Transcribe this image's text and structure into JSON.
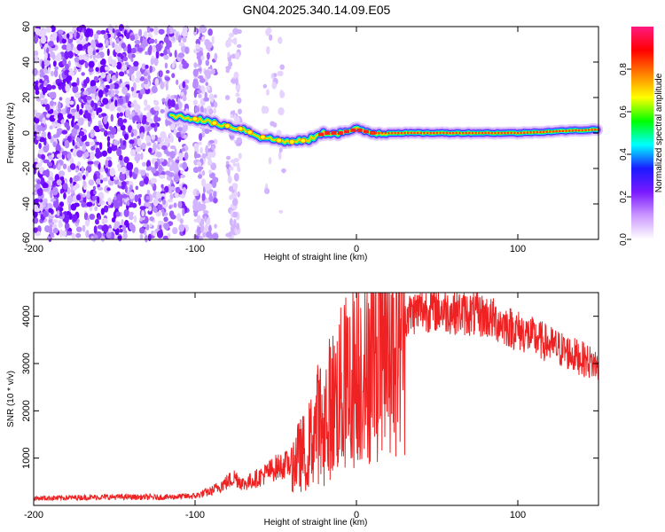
{
  "title": "GN04.2025.340.14.09.E05",
  "chart_data": [
    {
      "type": "heatmap",
      "xlabel": "Height of straight line (km)",
      "ylabel": "Frequency (Hz)",
      "xlim": [
        -200,
        150
      ],
      "ylim": [
        -60,
        60
      ],
      "xticks": [
        -200,
        -100,
        0,
        100
      ],
      "xtick_labels": [
        "-200",
        "-100",
        "0",
        "100"
      ],
      "yticks": [
        -60,
        -40,
        -20,
        0,
        20,
        40,
        60
      ],
      "ytick_labels": [
        "-60",
        "-40",
        "-20",
        "0",
        "20",
        "40",
        "60"
      ],
      "colorbar": {
        "label": "Normalized spectral amplitude",
        "range": [
          0,
          1
        ],
        "ticks": [
          0,
          0.2,
          0.4,
          0.6,
          0.8
        ],
        "tick_labels": [
          "0.0",
          "0.2",
          "0.4",
          "0.6",
          "0.8"
        ],
        "colors": [
          "#ffffff",
          "#cc99ff",
          "#7a1aff",
          "#1a1aff",
          "#00ffff",
          "#00ff00",
          "#ffff00",
          "#ff8000",
          "#ff0000",
          "#ff1a80"
        ]
      },
      "ridge": {
        "description_values_km_hz": [
          [
            -115,
            10
          ],
          [
            -100,
            8
          ],
          [
            -90,
            6
          ],
          [
            -80,
            4
          ],
          [
            -70,
            2
          ],
          [
            -60,
            -2
          ],
          [
            -50,
            -4
          ],
          [
            -40,
            -5
          ],
          [
            -30,
            -4
          ],
          [
            -25,
            -2
          ],
          [
            -20,
            0
          ],
          [
            -10,
            0
          ],
          [
            0,
            2
          ],
          [
            10,
            0
          ],
          [
            50,
            0
          ],
          [
            100,
            0
          ],
          [
            150,
            2
          ]
        ]
      }
    },
    {
      "type": "line",
      "xlabel": "Height of straight line (km)",
      "ylabel": "SNR (10 * v/v)",
      "xlim": [
        -200,
        150
      ],
      "ylim": [
        0,
        4500
      ],
      "xticks": [
        -200,
        -100,
        0,
        100
      ],
      "xtick_labels": [
        "-200",
        "-100",
        "0",
        "100"
      ],
      "yticks": [
        1000,
        2000,
        3000,
        4000
      ],
      "ytick_labels": [
        "1000",
        "2000",
        "3000",
        "4000"
      ],
      "line_color": "#ee2222",
      "envelope_x": [
        -200,
        -150,
        -120,
        -100,
        -90,
        -80,
        -75,
        -70,
        -60,
        -50,
        -40,
        -30,
        -25,
        -20,
        -10,
        0,
        10,
        20,
        30,
        40,
        50,
        60,
        80,
        100,
        120,
        150
      ],
      "envelope_y": [
        150,
        180,
        170,
        200,
        300,
        500,
        600,
        450,
        600,
        800,
        900,
        1200,
        1700,
        1900,
        2400,
        2900,
        3300,
        3800,
        4000,
        4150,
        4150,
        4100,
        4000,
        3700,
        3400,
        2950
      ]
    }
  ]
}
